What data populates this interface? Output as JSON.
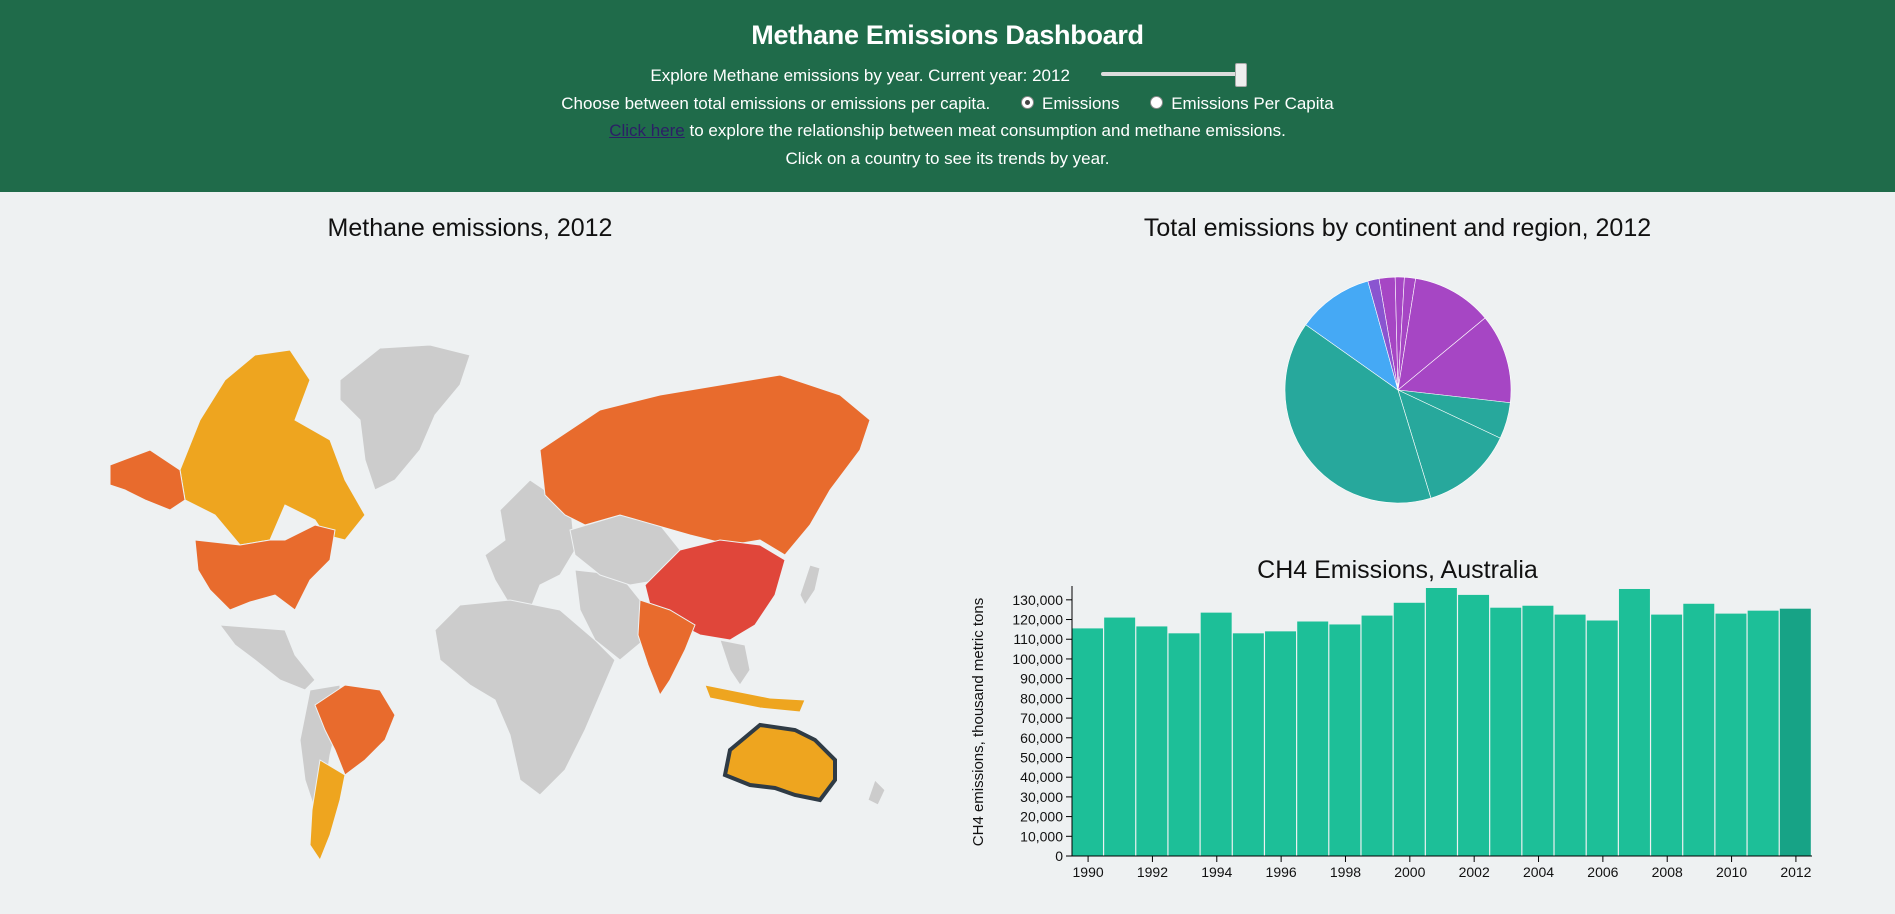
{
  "header": {
    "title": "Methane Emissions Dashboard",
    "year_prompt": "Explore Methane emissions by year. Current year: 2012",
    "year_slider": {
      "min": 1990,
      "max": 2012,
      "value": 2012
    },
    "mode_prompt": "Choose between total emissions or emissions per capita.",
    "modes": [
      {
        "label": "Emissions",
        "checked": true
      },
      {
        "label": "Emissions Per Capita",
        "checked": false
      }
    ],
    "link_text": "Click here",
    "link_rest": " to explore the relationship between meat consumption and methane emissions.",
    "instruction": "Click on a country to see its trends by year."
  },
  "map": {
    "title": "Methane emissions, 2012",
    "selected_country": "Australia",
    "colors": {
      "no_data": "#cccccc",
      "low": "#f2c21b",
      "mid": "#eea51f",
      "high": "#e86b2d",
      "highest": "#e0463a",
      "selected_outline": "#2f3b45"
    }
  },
  "pie": {
    "title": "Total emissions by continent and region, 2012",
    "chart_data": {
      "type": "pie",
      "slices": [
        {
          "value": 2.3,
          "color": "#a646c4"
        },
        {
          "value": 1.3,
          "color": "#a646c4"
        },
        {
          "value": 1.6,
          "color": "#a646c4"
        },
        {
          "value": 11.5,
          "color": "#a646c4"
        },
        {
          "value": 12.8,
          "color": "#a646c4"
        },
        {
          "value": 5.2,
          "color": "#27a89c"
        },
        {
          "value": 13.3,
          "color": "#27a89c"
        },
        {
          "value": 39.5,
          "color": "#27a89c"
        },
        {
          "value": 10.9,
          "color": "#45a9f5"
        },
        {
          "value": 1.6,
          "color": "#8a55d0"
        }
      ]
    }
  },
  "bar": {
    "title": "CH4 Emissions, Australia",
    "chart_data": {
      "type": "bar",
      "categories": [
        "1990",
        "1991",
        "1992",
        "1993",
        "1994",
        "1995",
        "1996",
        "1997",
        "1998",
        "1999",
        "2000",
        "2001",
        "2002",
        "2003",
        "2004",
        "2005",
        "2006",
        "2007",
        "2008",
        "2009",
        "2010",
        "2011",
        "2012"
      ],
      "values": [
        115500,
        121000,
        116500,
        113000,
        123500,
        113000,
        114000,
        119000,
        117500,
        122000,
        128500,
        136000,
        132500,
        126000,
        127000,
        122500,
        119500,
        135500,
        122500,
        128000,
        123000,
        124500,
        125500
      ],
      "highlight": "2012",
      "bar_color": "#1dbf98",
      "highlight_color": "#17a386",
      "ylabel": "CH4 emissions, thousand metric tons",
      "ylim": [
        0,
        136000
      ],
      "yticks": [
        0,
        10000,
        20000,
        30000,
        40000,
        50000,
        60000,
        70000,
        80000,
        90000,
        100000,
        110000,
        120000,
        130000
      ],
      "xticks": [
        "1990",
        "1992",
        "1994",
        "1996",
        "1998",
        "2000",
        "2002",
        "2004",
        "2006",
        "2008",
        "2010",
        "2012"
      ]
    }
  }
}
